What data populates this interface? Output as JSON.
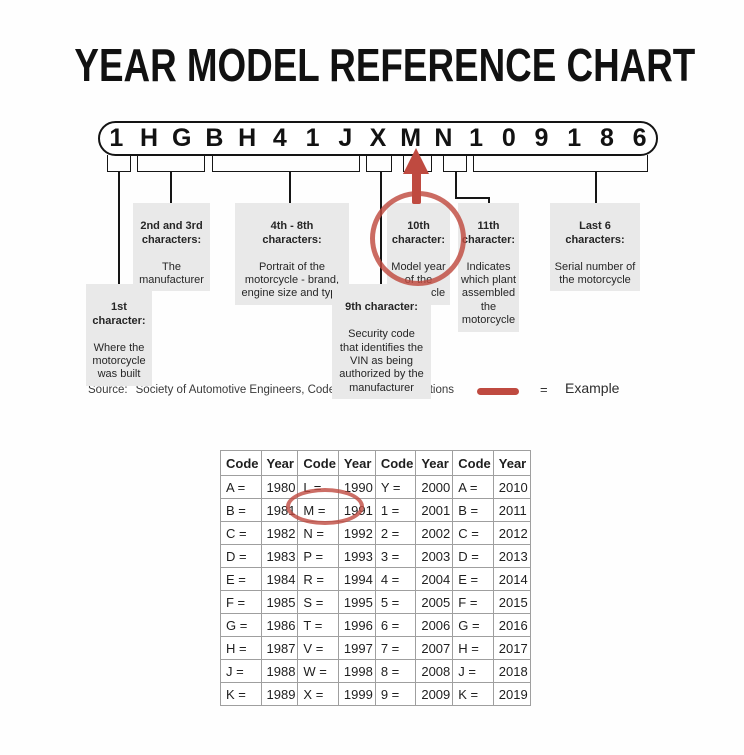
{
  "title": "YEAR MODEL REFERENCE CHART",
  "vin": {
    "value": "1HGBH41JXMN109186",
    "characters": [
      "1",
      "H",
      "G",
      "B",
      "H",
      "4",
      "1",
      "J",
      "X",
      "M",
      "N",
      "1",
      "0",
      "9",
      "1",
      "8",
      "6"
    ]
  },
  "callouts": {
    "first": {
      "heading": "1st\ncharacter:",
      "body": "Where the\nmotorcycle\nwas built"
    },
    "second": {
      "heading": "2nd and 3rd\ncharacters:",
      "body": "The\nmanufacturer"
    },
    "fourth": {
      "heading": "4th - 8th\ncharacters:",
      "body": "Portrait of the\nmotorcycle - brand,\nengine size and type"
    },
    "ninth": {
      "heading": "9th character:",
      "body": "Security code\nthat identifies the\nVIN as being\nauthorized by the\nmanufacturer"
    },
    "tenth": {
      "heading": "10th\ncharacter:",
      "body": "Model year\nof the\nmotorcycle"
    },
    "eleventh": {
      "heading": "11th\ncharacter:",
      "body": "Indicates\nwhich plant\nassembled\nthe\nmotorcycle"
    },
    "last6": {
      "heading": "Last 6\ncharacters:",
      "body": "Serial number of\nthe motorcycle"
    }
  },
  "source": {
    "label": "Source:",
    "text": "Society of Automotive Engineers, Code of Federal Regulations"
  },
  "legend": {
    "symbol": "=",
    "label": "Example"
  },
  "table": {
    "headers": [
      "Code",
      "Year",
      "Code",
      "Year",
      "Code",
      "Year",
      "Code",
      "Year"
    ],
    "rows": [
      [
        "A =",
        "1980",
        "L =",
        "1990",
        "Y =",
        "2000",
        "A =",
        "2010"
      ],
      [
        "B =",
        "1981",
        "M =",
        "1991",
        "1 =",
        "2001",
        "B =",
        "2011"
      ],
      [
        "C =",
        "1982",
        "N =",
        "1992",
        "2 =",
        "2002",
        "C =",
        "2012"
      ],
      [
        "D =",
        "1983",
        "P =",
        "1993",
        "3 =",
        "2003",
        "D =",
        "2013"
      ],
      [
        "E =",
        "1984",
        "R =",
        "1994",
        "4 =",
        "2004",
        "E =",
        "2014"
      ],
      [
        "F =",
        "1985",
        "S =",
        "1995",
        "5 =",
        "2005",
        "F =",
        "2015"
      ],
      [
        "G =",
        "1986",
        "T =",
        "1996",
        "6 =",
        "2006",
        "G =",
        "2016"
      ],
      [
        "H =",
        "1987",
        "V =",
        "1997",
        "7 =",
        "2007",
        "H =",
        "2017"
      ],
      [
        "J =",
        "1988",
        "W =",
        "1998",
        "8 =",
        "2008",
        "J =",
        "2018"
      ],
      [
        "K =",
        "1989",
        "X =",
        "1999",
        "9 =",
        "2009",
        "K =",
        "2019"
      ]
    ],
    "highlighted_entry": {
      "code": "M",
      "year": "1991"
    }
  },
  "colors": {
    "accent_red": "#bf4a40",
    "label_bg": "#e9e9e9",
    "line": "#161616"
  }
}
